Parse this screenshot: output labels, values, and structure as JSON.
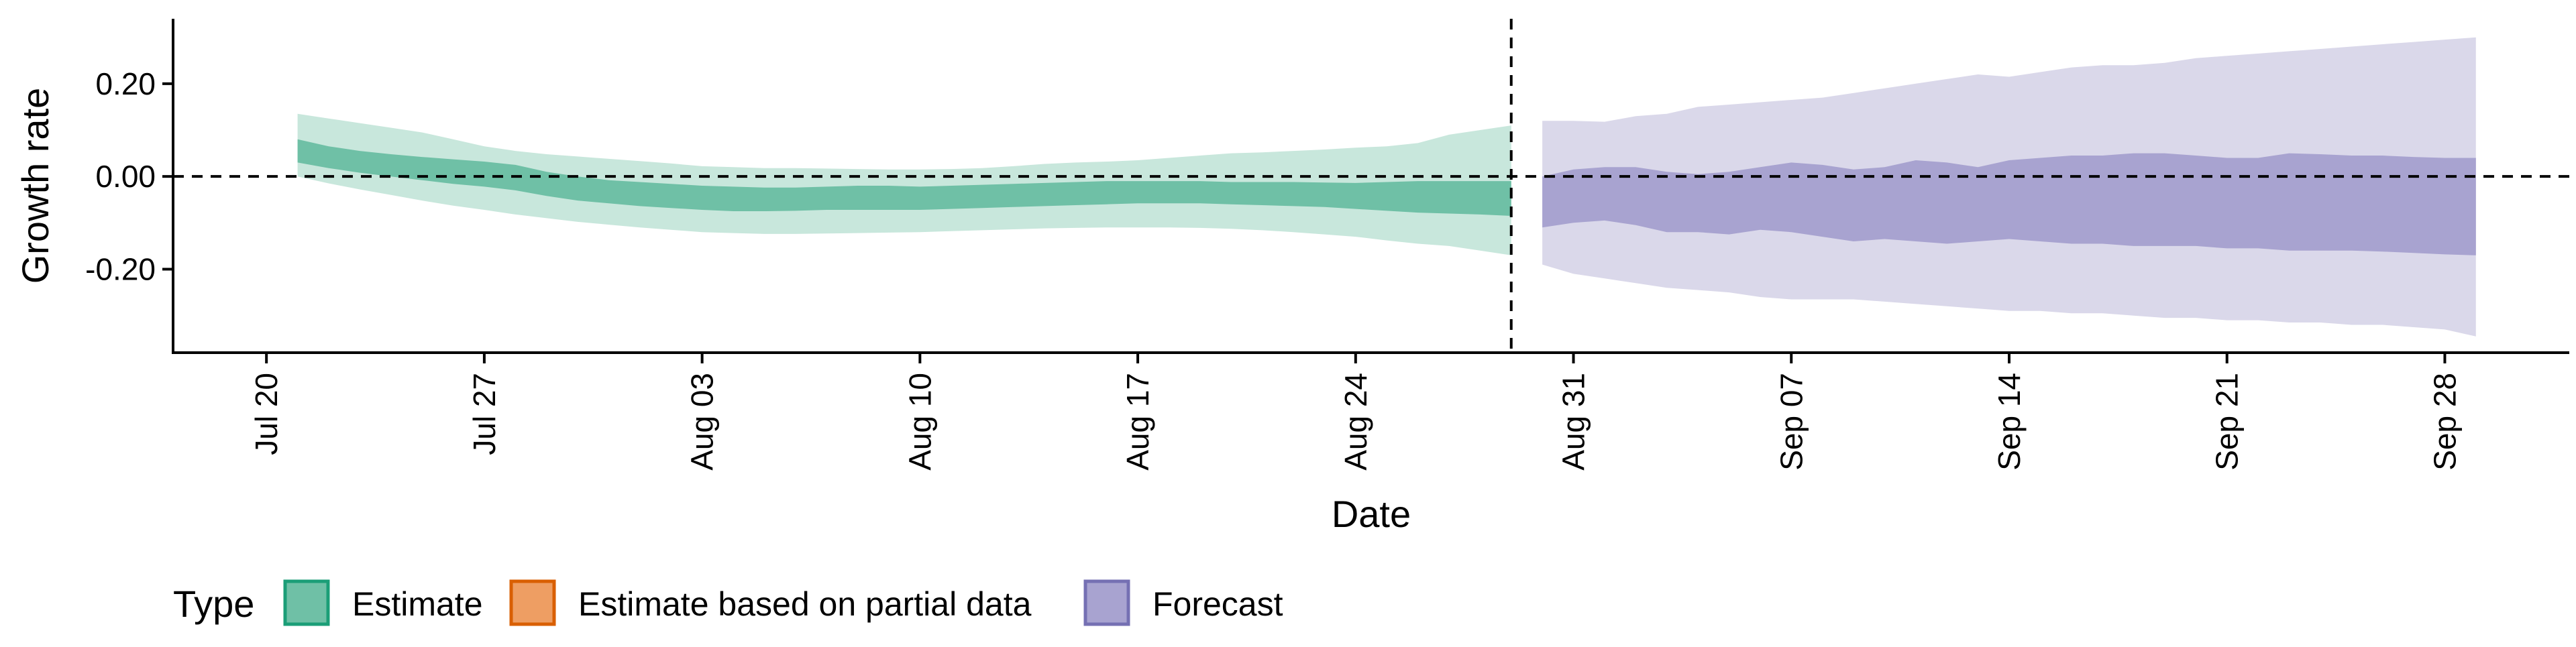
{
  "chart_data": {
    "type": "area",
    "xlabel": "Date",
    "ylabel": "Growth rate",
    "x_range": [
      "2024-07-17",
      "2024-10-02"
    ],
    "ylim": [
      -0.38,
      0.34
    ],
    "grid": false,
    "y_ticks": [
      {
        "value": 0.2,
        "label": "0.20"
      },
      {
        "value": 0.0,
        "label": "0.00"
      },
      {
        "value": -0.2,
        "label": "-0.20"
      }
    ],
    "x_ticks": [
      {
        "date": "2024-07-20",
        "label": "Jul 20"
      },
      {
        "date": "2024-07-27",
        "label": "Jul 27"
      },
      {
        "date": "2024-08-03",
        "label": "Aug 03"
      },
      {
        "date": "2024-08-10",
        "label": "Aug 10"
      },
      {
        "date": "2024-08-17",
        "label": "Aug 17"
      },
      {
        "date": "2024-08-24",
        "label": "Aug 24"
      },
      {
        "date": "2024-08-31",
        "label": "Aug 31"
      },
      {
        "date": "2024-09-07",
        "label": "Sep 07"
      },
      {
        "date": "2024-09-14",
        "label": "Sep 14"
      },
      {
        "date": "2024-09-21",
        "label": "Sep 21"
      },
      {
        "date": "2024-09-28",
        "label": "Sep 28"
      }
    ],
    "reference_lines": {
      "horizontal_y": 0.0,
      "vertical_date": "2024-08-29",
      "style": "dashed"
    },
    "legend": {
      "title": "Type",
      "position": "bottom-left",
      "entries": [
        {
          "label": "Estimate",
          "color": "#6FC0A6",
          "border": "#1B9E77"
        },
        {
          "label": "Estimate based on partial data",
          "color": "#EE9E63",
          "border": "#D95F02"
        },
        {
          "label": "Forecast",
          "color": "#A8A3D0",
          "border": "#7570B3"
        }
      ]
    },
    "series": [
      {
        "type": "Estimate",
        "outer_color": "#C8E7DC",
        "inner_color": "#6FC0A6",
        "dates": [
          "2024-07-21",
          "2024-07-22",
          "2024-07-23",
          "2024-07-24",
          "2024-07-25",
          "2024-07-26",
          "2024-07-27",
          "2024-07-28",
          "2024-07-29",
          "2024-07-30",
          "2024-07-31",
          "2024-08-01",
          "2024-08-02",
          "2024-08-03",
          "2024-08-04",
          "2024-08-05",
          "2024-08-06",
          "2024-08-07",
          "2024-08-08",
          "2024-08-09",
          "2024-08-10",
          "2024-08-11",
          "2024-08-12",
          "2024-08-13",
          "2024-08-14",
          "2024-08-15",
          "2024-08-16",
          "2024-08-17",
          "2024-08-18",
          "2024-08-19",
          "2024-08-20",
          "2024-08-21",
          "2024-08-22",
          "2024-08-23",
          "2024-08-24",
          "2024-08-25",
          "2024-08-26",
          "2024-08-27",
          "2024-08-28",
          "2024-08-29"
        ],
        "outer_upper": [
          0.135,
          0.125,
          0.115,
          0.105,
          0.095,
          0.08,
          0.065,
          0.055,
          0.048,
          0.043,
          0.038,
          0.033,
          0.028,
          0.022,
          0.02,
          0.018,
          0.018,
          0.017,
          0.016,
          0.015,
          0.015,
          0.016,
          0.018,
          0.022,
          0.027,
          0.03,
          0.032,
          0.035,
          0.04,
          0.045,
          0.05,
          0.052,
          0.055,
          0.058,
          0.062,
          0.065,
          0.072,
          0.09,
          0.1,
          0.11
        ],
        "inner_upper": [
          0.08,
          0.065,
          0.055,
          0.048,
          0.042,
          0.037,
          0.032,
          0.025,
          0.01,
          0.0,
          -0.008,
          -0.012,
          -0.016,
          -0.02,
          -0.022,
          -0.024,
          -0.024,
          -0.022,
          -0.02,
          -0.02,
          -0.022,
          -0.02,
          -0.018,
          -0.016,
          -0.014,
          -0.012,
          -0.01,
          -0.01,
          -0.01,
          -0.01,
          -0.012,
          -0.012,
          -0.012,
          -0.013,
          -0.014,
          -0.012,
          -0.01,
          -0.01,
          -0.01,
          -0.01
        ],
        "inner_lower": [
          0.03,
          0.018,
          0.008,
          0.0,
          -0.008,
          -0.016,
          -0.022,
          -0.03,
          -0.042,
          -0.052,
          -0.058,
          -0.064,
          -0.068,
          -0.072,
          -0.075,
          -0.075,
          -0.074,
          -0.072,
          -0.072,
          -0.072,
          -0.072,
          -0.07,
          -0.068,
          -0.066,
          -0.064,
          -0.062,
          -0.06,
          -0.058,
          -0.058,
          -0.058,
          -0.06,
          -0.062,
          -0.064,
          -0.066,
          -0.07,
          -0.074,
          -0.078,
          -0.08,
          -0.082,
          -0.085
        ],
        "outer_lower": [
          0.0,
          -0.015,
          -0.028,
          -0.04,
          -0.052,
          -0.063,
          -0.072,
          -0.082,
          -0.09,
          -0.098,
          -0.104,
          -0.11,
          -0.115,
          -0.12,
          -0.122,
          -0.124,
          -0.124,
          -0.123,
          -0.122,
          -0.121,
          -0.12,
          -0.118,
          -0.116,
          -0.114,
          -0.112,
          -0.111,
          -0.11,
          -0.11,
          -0.11,
          -0.111,
          -0.113,
          -0.116,
          -0.12,
          -0.125,
          -0.13,
          -0.138,
          -0.145,
          -0.15,
          -0.16,
          -0.17
        ]
      },
      {
        "type": "Forecast",
        "outer_color": "#DAD8EA",
        "inner_color": "#A8A3D0",
        "dates": [
          "2024-08-30",
          "2024-08-31",
          "2024-09-01",
          "2024-09-02",
          "2024-09-03",
          "2024-09-04",
          "2024-09-05",
          "2024-09-06",
          "2024-09-07",
          "2024-09-08",
          "2024-09-09",
          "2024-09-10",
          "2024-09-11",
          "2024-09-12",
          "2024-09-13",
          "2024-09-14",
          "2024-09-15",
          "2024-09-16",
          "2024-09-17",
          "2024-09-18",
          "2024-09-19",
          "2024-09-20",
          "2024-09-21",
          "2024-09-22",
          "2024-09-23",
          "2024-09-24",
          "2024-09-25",
          "2024-09-26",
          "2024-09-27",
          "2024-09-28",
          "2024-09-29"
        ],
        "outer_upper": [
          0.12,
          0.12,
          0.118,
          0.13,
          0.135,
          0.15,
          0.155,
          0.16,
          0.165,
          0.17,
          0.18,
          0.19,
          0.2,
          0.21,
          0.22,
          0.215,
          0.225,
          0.235,
          0.24,
          0.24,
          0.245,
          0.255,
          0.26,
          0.265,
          0.27,
          0.275,
          0.28,
          0.285,
          0.29,
          0.295,
          0.3
        ],
        "inner_upper": [
          0.0,
          0.015,
          0.02,
          0.02,
          0.01,
          0.005,
          0.01,
          0.02,
          0.03,
          0.025,
          0.015,
          0.02,
          0.035,
          0.03,
          0.02,
          0.035,
          0.04,
          0.045,
          0.045,
          0.05,
          0.05,
          0.045,
          0.04,
          0.04,
          0.05,
          0.048,
          0.045,
          0.045,
          0.042,
          0.04,
          0.04
        ],
        "inner_lower": [
          -0.11,
          -0.1,
          -0.095,
          -0.105,
          -0.12,
          -0.12,
          -0.125,
          -0.115,
          -0.12,
          -0.13,
          -0.14,
          -0.135,
          -0.14,
          -0.145,
          -0.14,
          -0.135,
          -0.14,
          -0.145,
          -0.145,
          -0.15,
          -0.15,
          -0.15,
          -0.155,
          -0.155,
          -0.16,
          -0.16,
          -0.16,
          -0.162,
          -0.165,
          -0.168,
          -0.17
        ],
        "outer_lower": [
          -0.19,
          -0.21,
          -0.22,
          -0.23,
          -0.24,
          -0.245,
          -0.25,
          -0.26,
          -0.265,
          -0.265,
          -0.265,
          -0.27,
          -0.275,
          -0.28,
          -0.285,
          -0.29,
          -0.29,
          -0.295,
          -0.295,
          -0.3,
          -0.305,
          -0.305,
          -0.31,
          -0.31,
          -0.315,
          -0.315,
          -0.32,
          -0.32,
          -0.325,
          -0.33,
          -0.345
        ]
      }
    ]
  }
}
